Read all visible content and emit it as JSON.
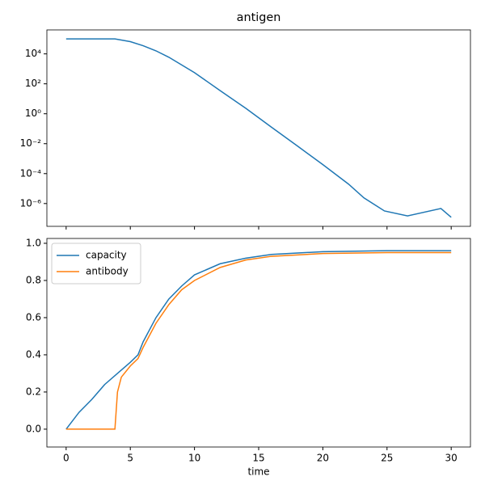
{
  "chart_data": [
    {
      "type": "line",
      "title": "antigen",
      "yscale": "log",
      "xlim": [
        -1.5,
        31.5
      ],
      "ylim": [
        400000.0,
        3e-08
      ],
      "yticks": [
        {
          "value": 10000.0,
          "label": "10⁴"
        },
        {
          "value": 100,
          "label": "10²"
        },
        {
          "value": 1,
          "label": "10⁰"
        },
        {
          "value": 0.01,
          "label": "10⁻²"
        },
        {
          "value": 0.0001,
          "label": "10⁻⁴"
        },
        {
          "value": 1e-06,
          "label": "10⁻⁶"
        }
      ],
      "series": [
        {
          "color": "#1f77b4",
          "x": [
            0,
            3.8,
            5,
            6,
            7,
            8,
            10,
            12,
            14,
            16,
            18,
            20,
            22,
            23.2,
            24.8,
            26.6,
            29.2,
            30
          ],
          "values": [
            100000.0,
            100000.0,
            66000.0,
            35000.0,
            16000.0,
            6000,
            560,
            35,
            2.3,
            0.126,
            0.0072,
            0.0004,
            2e-05,
            2.4e-06,
            3.2e-07,
            1.5e-07,
            4.7e-07,
            1.2e-07
          ]
        }
      ]
    },
    {
      "type": "line",
      "x_label": "time",
      "legend": "upper left",
      "xlim": [
        -1.5,
        31.5
      ],
      "ylim": [
        -0.096,
        1.026
      ],
      "xticks": [
        0,
        5,
        10,
        15,
        20,
        25,
        30
      ],
      "yticks": [
        {
          "value": 0,
          "label": "0.0"
        },
        {
          "value": 0.2,
          "label": "0.2"
        },
        {
          "value": 0.4,
          "label": "0.4"
        },
        {
          "value": 0.6,
          "label": "0.6"
        },
        {
          "value": 0.8,
          "label": "0.8"
        },
        {
          "value": 1,
          "label": "1.0"
        }
      ],
      "series": [
        {
          "name": "capacity",
          "color": "#1f77b4",
          "x": [
            0,
            1,
            2,
            3,
            4,
            5,
            5.6,
            6,
            7,
            8,
            9,
            10,
            12,
            14,
            16,
            20,
            25,
            30
          ],
          "values": [
            0,
            0.09,
            0.16,
            0.24,
            0.3,
            0.36,
            0.4,
            0.47,
            0.6,
            0.7,
            0.77,
            0.83,
            0.89,
            0.92,
            0.94,
            0.955,
            0.96,
            0.96
          ]
        },
        {
          "name": "antibody",
          "color": "#ff7f0e",
          "x": [
            0,
            3.8,
            4,
            4.3,
            5,
            5.6,
            6,
            7,
            8,
            9,
            10,
            12,
            14,
            16,
            20,
            25,
            30
          ],
          "values": [
            0,
            0,
            0.2,
            0.28,
            0.34,
            0.38,
            0.44,
            0.57,
            0.67,
            0.75,
            0.8,
            0.87,
            0.91,
            0.93,
            0.945,
            0.95,
            0.95
          ]
        }
      ]
    }
  ]
}
